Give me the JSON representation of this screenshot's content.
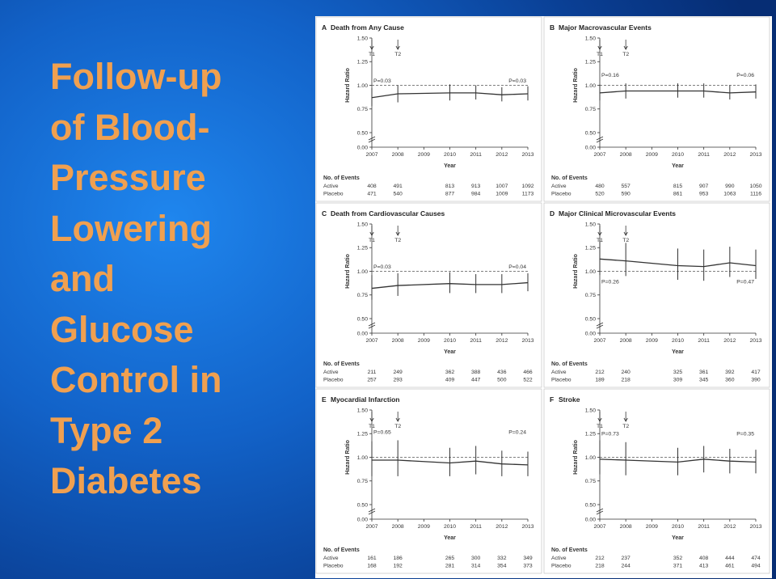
{
  "slide": {
    "title_lines": [
      "Follow-up",
      "of Blood-",
      "Pressure",
      "Lowering",
      "and",
      "Glucose",
      "Control in",
      "Type 2",
      "Diabetes"
    ],
    "background_color": "#1262c8",
    "title_color": "#f0a050"
  },
  "chart_data": [
    {
      "type": "line",
      "letter": "A",
      "title": "Death from Any Cause",
      "xlabel": "Year",
      "ylabel": "Hazard Ratio",
      "x": [
        2007,
        2008,
        2009,
        2010,
        2011,
        2012,
        2013
      ],
      "yticks": [
        "0.00",
        "0.50",
        "0.75",
        "1.00",
        "1.25",
        "1.50"
      ],
      "ylim": [
        0,
        1.5
      ],
      "reference_line": 1.0,
      "markers": [
        {
          "label": "T1",
          "x": 2007
        },
        {
          "label": "T2",
          "x": 2008
        }
      ],
      "hr_x": [
        2007,
        2008,
        2010,
        2011,
        2012,
        2013
      ],
      "hr": [
        0.87,
        0.91,
        0.92,
        0.92,
        0.9,
        0.91
      ],
      "ci_low": [
        0.78,
        0.82,
        0.84,
        0.85,
        0.83,
        0.84
      ],
      "ci_high": [
        0.97,
        1.0,
        1.01,
        1.0,
        0.98,
        0.99
      ],
      "p_values": [
        {
          "text": "P=0.03",
          "x": 2007,
          "y": 1.03
        },
        {
          "text": "P=0.03",
          "x": 2013,
          "y": 1.03
        }
      ],
      "events_header": "No. of Events",
      "events": [
        {
          "label": "Active",
          "values": [
            "408",
            "491",
            "",
            "813",
            "913",
            "1007",
            "1092"
          ]
        },
        {
          "label": "Placebo",
          "values": [
            "471",
            "540",
            "",
            "877",
            "984",
            "1009",
            "1173"
          ]
        }
      ]
    },
    {
      "type": "line",
      "letter": "B",
      "title": "Major Macrovascular Events",
      "xlabel": "Year",
      "ylabel": "Hazard Ratio",
      "x": [
        2007,
        2008,
        2009,
        2010,
        2011,
        2012,
        2013
      ],
      "yticks": [
        "0.00",
        "0.50",
        "0.75",
        "1.00",
        "1.25",
        "1.50"
      ],
      "ylim": [
        0,
        1.5
      ],
      "reference_line": 1.0,
      "markers": [
        {
          "label": "T1",
          "x": 2007
        },
        {
          "label": "T2",
          "x": 2008
        }
      ],
      "hr_x": [
        2007,
        2008,
        2010,
        2011,
        2012,
        2013
      ],
      "hr": [
        0.92,
        0.94,
        0.94,
        0.94,
        0.92,
        0.93
      ],
      "ci_low": [
        0.84,
        0.86,
        0.87,
        0.87,
        0.85,
        0.86
      ],
      "ci_high": [
        1.01,
        1.02,
        1.02,
        1.02,
        1.0,
        1.01
      ],
      "p_values": [
        {
          "text": "P=0.16",
          "x": 2007,
          "y": 1.09
        },
        {
          "text": "P=0.06",
          "x": 2013,
          "y": 1.09
        }
      ],
      "events_header": "No. of Events",
      "events": [
        {
          "label": "Active",
          "values": [
            "480",
            "557",
            "",
            "815",
            "907",
            "990",
            "1050"
          ]
        },
        {
          "label": "Placebo",
          "values": [
            "520",
            "590",
            "",
            "861",
            "953",
            "1063",
            "1116"
          ]
        }
      ]
    },
    {
      "type": "line",
      "letter": "C",
      "title": "Death from Cardiovascular Causes",
      "xlabel": "Year",
      "ylabel": "Hazard Ratio",
      "x": [
        2007,
        2008,
        2009,
        2010,
        2011,
        2012,
        2013
      ],
      "yticks": [
        "0.00",
        "0.50",
        "0.75",
        "1.00",
        "1.25",
        "1.50"
      ],
      "ylim": [
        0,
        1.5
      ],
      "reference_line": 1.0,
      "markers": [
        {
          "label": "T1",
          "x": 2007
        },
        {
          "label": "T2",
          "x": 2008
        }
      ],
      "hr_x": [
        2007,
        2008,
        2010,
        2011,
        2012,
        2013
      ],
      "hr": [
        0.82,
        0.85,
        0.87,
        0.86,
        0.86,
        0.88
      ],
      "ci_low": [
        0.7,
        0.74,
        0.77,
        0.77,
        0.77,
        0.79
      ],
      "ci_high": [
        0.96,
        0.98,
        0.99,
        0.97,
        0.97,
        0.98
      ],
      "p_values": [
        {
          "text": "P=0.03",
          "x": 2007,
          "y": 1.03
        },
        {
          "text": "P=0.04",
          "x": 2013,
          "y": 1.03
        }
      ],
      "events_header": "No. of Events",
      "events": [
        {
          "label": "Active",
          "values": [
            "211",
            "249",
            "",
            "362",
            "388",
            "436",
            "466"
          ]
        },
        {
          "label": "Placebo",
          "values": [
            "257",
            "293",
            "",
            "409",
            "447",
            "500",
            "522"
          ]
        }
      ]
    },
    {
      "type": "line",
      "letter": "D",
      "title": "Major Clinical Microvascular Events",
      "xlabel": "Year",
      "ylabel": "Hazard Ratio",
      "x": [
        2007,
        2008,
        2009,
        2010,
        2011,
        2012,
        2013
      ],
      "yticks": [
        "0.00",
        "0.50",
        "0.75",
        "1.00",
        "1.25",
        "1.50"
      ],
      "ylim": [
        0,
        1.5
      ],
      "reference_line": 1.0,
      "markers": [
        {
          "label": "T1",
          "x": 2007
        },
        {
          "label": "T2",
          "x": 2008
        }
      ],
      "hr_x": [
        2007,
        2008,
        2010,
        2011,
        2012,
        2013
      ],
      "hr": [
        1.13,
        1.11,
        1.06,
        1.05,
        1.09,
        1.06
      ],
      "ci_low": [
        0.96,
        0.95,
        0.91,
        0.9,
        0.94,
        0.92
      ],
      "ci_high": [
        1.33,
        1.3,
        1.24,
        1.23,
        1.26,
        1.23
      ],
      "p_values": [
        {
          "text": "P=0.26",
          "x": 2007,
          "y": 0.87
        },
        {
          "text": "P=0.47",
          "x": 2013,
          "y": 0.87
        }
      ],
      "events_header": "No. of Events",
      "events": [
        {
          "label": "Active",
          "values": [
            "212",
            "240",
            "",
            "325",
            "361",
            "392",
            "417"
          ]
        },
        {
          "label": "Placebo",
          "values": [
            "189",
            "218",
            "",
            "309",
            "345",
            "360",
            "390"
          ]
        }
      ]
    },
    {
      "type": "line",
      "letter": "E",
      "title": "Myocardial Infarction",
      "xlabel": "Year",
      "ylabel": "Hazard Ratio",
      "x": [
        2007,
        2008,
        2009,
        2010,
        2011,
        2012,
        2013
      ],
      "yticks": [
        "0.00",
        "0.50",
        "0.75",
        "1.00",
        "1.25",
        "1.50"
      ],
      "ylim": [
        0,
        1.5
      ],
      "reference_line": 1.0,
      "markers": [
        {
          "label": "T1",
          "x": 2007
        },
        {
          "label": "T2",
          "x": 2008
        }
      ],
      "hr_x": [
        2007,
        2008,
        2010,
        2011,
        2012,
        2013
      ],
      "hr": [
        0.97,
        0.97,
        0.94,
        0.96,
        0.93,
        0.92
      ],
      "ci_low": [
        0.8,
        0.8,
        0.8,
        0.82,
        0.8,
        0.8
      ],
      "ci_high": [
        1.17,
        1.18,
        1.1,
        1.12,
        1.07,
        1.06
      ],
      "p_values": [
        {
          "text": "P=0.65",
          "x": 2007,
          "y": 1.25
        },
        {
          "text": "P=0.24",
          "x": 2013,
          "y": 1.25
        }
      ],
      "events_header": "No. of Events",
      "events": [
        {
          "label": "Active",
          "values": [
            "161",
            "186",
            "",
            "265",
            "300",
            "332",
            "349"
          ]
        },
        {
          "label": "Placebo",
          "values": [
            "168",
            "192",
            "",
            "281",
            "314",
            "354",
            "373"
          ]
        }
      ]
    },
    {
      "type": "line",
      "letter": "F",
      "title": "Stroke",
      "xlabel": "Year",
      "ylabel": "Hazard Ratio",
      "x": [
        2007,
        2008,
        2009,
        2010,
        2011,
        2012,
        2013
      ],
      "yticks": [
        "0.00",
        "0.50",
        "0.75",
        "1.00",
        "1.25",
        "1.50"
      ],
      "ylim": [
        0,
        1.5
      ],
      "reference_line": 1.0,
      "markers": [
        {
          "label": "T1",
          "x": 2007
        },
        {
          "label": "T2",
          "x": 2008
        }
      ],
      "hr_x": [
        2007,
        2008,
        2010,
        2011,
        2012,
        2013
      ],
      "hr": [
        0.98,
        0.97,
        0.95,
        0.98,
        0.96,
        0.95
      ],
      "ci_low": [
        0.82,
        0.81,
        0.81,
        0.84,
        0.83,
        0.83
      ],
      "ci_high": [
        1.18,
        1.16,
        1.1,
        1.12,
        1.09,
        1.08
      ],
      "p_values": [
        {
          "text": "P=0.73",
          "x": 2007,
          "y": 1.23
        },
        {
          "text": "P=0.35",
          "x": 2013,
          "y": 1.23
        }
      ],
      "events_header": "No. of Events",
      "events": [
        {
          "label": "Active",
          "values": [
            "212",
            "237",
            "",
            "352",
            "408",
            "444",
            "474"
          ]
        },
        {
          "label": "Placebo",
          "values": [
            "218",
            "244",
            "",
            "371",
            "413",
            "461",
            "494"
          ]
        }
      ]
    }
  ]
}
